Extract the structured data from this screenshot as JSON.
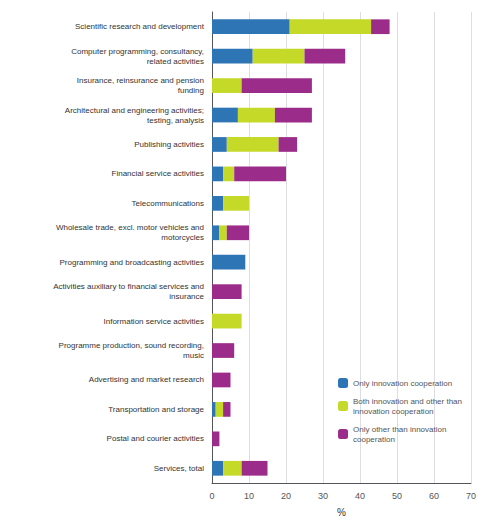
{
  "chart_data": {
    "type": "bar",
    "orientation": "horizontal",
    "stacked": true,
    "categories": [
      "Scientific research and development",
      "Computer programming, consultancy,\nrelated activities",
      "Insurance, reinsurance and pension\nfunding",
      "Architectural and engineering activities;\ntesting, analysis",
      "Publishing activities",
      "Financial service activities",
      "Telecommunications",
      "Wholesale trade, excl. motor vehicles and\nmotorcycles",
      "Programming and broadcasting activities",
      "Activities auxiliary to financial services and\ninsurance",
      "Information service activities",
      "Programme production, sound recording,\nmusic",
      "Advertising and market research",
      "Transportation and storage",
      "Postal and courier activities",
      "Services, total"
    ],
    "series": [
      {
        "name": "Only innovation cooperation",
        "color": "#2E75B6",
        "values": [
          21,
          11,
          0,
          7,
          4,
          3,
          3,
          2,
          9,
          0,
          0,
          0,
          0,
          1,
          0,
          3
        ]
      },
      {
        "name": "Both innovation and other than\ninnovation cooperation",
        "color": "#C5D928",
        "values": [
          22,
          14,
          8,
          10,
          14,
          3,
          7,
          2,
          0,
          0,
          8,
          0,
          0,
          2,
          0,
          5
        ]
      },
      {
        "name": "Only other than innovation\ncooperation",
        "color": "#9B2C8A",
        "values": [
          5,
          11,
          19,
          10,
          5,
          14,
          0,
          6,
          0,
          8,
          0,
          6,
          5,
          2,
          2,
          7
        ]
      }
    ],
    "xlabel": "%",
    "xlim": [
      0,
      70
    ],
    "xticks": [
      0,
      10,
      20,
      30,
      40,
      50,
      60,
      70
    ],
    "grid": true,
    "legend": "lower right"
  }
}
